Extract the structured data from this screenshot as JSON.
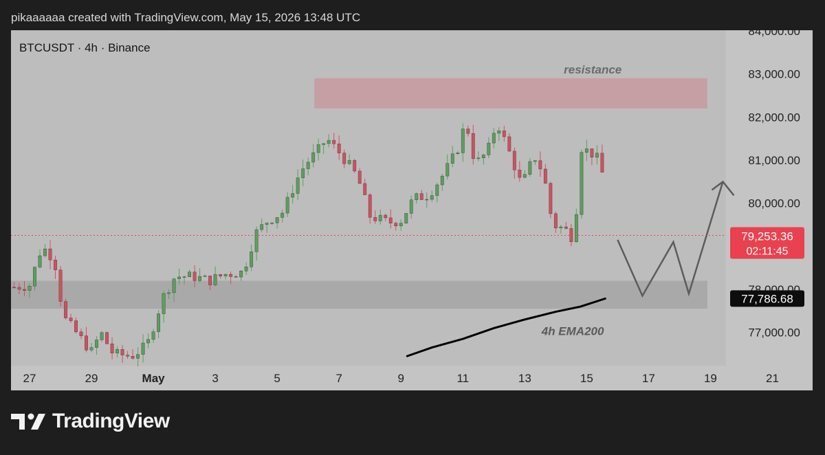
{
  "header": {
    "text": "pikaaaaaa created with TradingView.com, May 15, 2026 13:48 UTC"
  },
  "symbol": {
    "text": "BTCUSDT · 4h · Binance"
  },
  "footer": {
    "brand": "TradingView"
  },
  "chart_data": {
    "type": "candlestick",
    "symbol": "BTCUSDT",
    "timeframe": "4h",
    "exchange": "Binance",
    "ylim": [
      76500,
      84000
    ],
    "y_ticks": [
      "84,000.00",
      "83,000.00",
      "82,000.00",
      "81,000.00",
      "80,000.00",
      "78,000.00",
      "77,000.00"
    ],
    "y_tick_values": [
      84000,
      83000,
      82000,
      81000,
      80000,
      78000,
      77000
    ],
    "x_range_days": [
      26.4,
      52.3
    ],
    "x_ticks": [
      {
        "label": "27",
        "day": 27
      },
      {
        "label": "29",
        "day": 29
      },
      {
        "label": "May",
        "day": 31
      },
      {
        "label": "3",
        "day": 33
      },
      {
        "label": "5",
        "day": 35
      },
      {
        "label": "7",
        "day": 37
      },
      {
        "label": "9",
        "day": 39
      },
      {
        "label": "11",
        "day": 41
      },
      {
        "label": "13",
        "day": 43
      },
      {
        "label": "15",
        "day": 45
      },
      {
        "label": "17",
        "day": 47
      },
      {
        "label": "19",
        "day": 49
      },
      {
        "label": "21",
        "day": 51
      }
    ],
    "anchors": [
      [
        26.5,
        78050
      ],
      [
        27.0,
        78100
      ],
      [
        27.4,
        79000
      ],
      [
        27.8,
        78700
      ],
      [
        28.1,
        77350
      ],
      [
        28.5,
        77000
      ],
      [
        29.0,
        76550
      ],
      [
        29.3,
        77000
      ],
      [
        29.7,
        76500
      ],
      [
        30.3,
        76450
      ],
      [
        30.8,
        76700
      ],
      [
        31.3,
        77800
      ],
      [
        31.7,
        78300
      ],
      [
        32.3,
        78300
      ],
      [
        32.8,
        78200
      ],
      [
        33.3,
        78350
      ],
      [
        33.9,
        78400
      ],
      [
        34.3,
        79300
      ],
      [
        34.7,
        79600
      ],
      [
        35.2,
        79800
      ],
      [
        35.6,
        80500
      ],
      [
        35.9,
        80900
      ],
      [
        36.3,
        81200
      ],
      [
        36.6,
        81500
      ],
      [
        37.1,
        81100
      ],
      [
        37.6,
        80600
      ],
      [
        38.0,
        79700
      ],
      [
        38.6,
        79550
      ],
      [
        39.0,
        79600
      ],
      [
        39.4,
        80100
      ],
      [
        39.9,
        80200
      ],
      [
        40.4,
        80700
      ],
      [
        40.8,
        81200
      ],
      [
        41.1,
        81900
      ],
      [
        41.4,
        80900
      ],
      [
        41.8,
        81200
      ],
      [
        42.1,
        81900
      ],
      [
        42.6,
        81000
      ],
      [
        42.9,
        80400
      ],
      [
        43.3,
        81100
      ],
      [
        43.6,
        80700
      ],
      [
        43.9,
        79500
      ],
      [
        44.3,
        79400
      ],
      [
        44.6,
        79150
      ],
      [
        44.8,
        81300
      ],
      [
        45.3,
        81100
      ],
      [
        45.6,
        80500
      ],
      [
        45.65,
        79250
      ]
    ],
    "last_price": "79,253.36",
    "last_price_value": 79253.36,
    "countdown": "02:11:45",
    "ema": {
      "label": "4h EMA200",
      "value_label": "77,786.68",
      "value": 77786.68,
      "points": [
        [
          39.2,
          76450
        ],
        [
          40.0,
          76650
        ],
        [
          41.0,
          76850
        ],
        [
          42.0,
          77100
        ],
        [
          43.0,
          77300
        ],
        [
          44.0,
          77480
        ],
        [
          44.8,
          77600
        ],
        [
          45.6,
          77786.68
        ]
      ]
    },
    "resistance_zone": {
      "label": "resistance",
      "from": 82200,
      "to": 82900,
      "x_start": 36.2,
      "x_end": 48.9
    },
    "support_zone": {
      "from": 77550,
      "to": 78200,
      "x_start": 26.4,
      "x_end": 48.9
    },
    "projection": [
      [
        46.0,
        79150
      ],
      [
        46.8,
        77850
      ],
      [
        47.8,
        79100
      ],
      [
        48.3,
        77900
      ],
      [
        49.4,
        80500
      ]
    ],
    "colors": {
      "up": "#5aa05a",
      "down": "#d2505e",
      "resistance": "#c89aa0",
      "support": "#a6a6a6",
      "price_tag": "#e9414f",
      "ema_tag": "#0d0d0d",
      "ema_line": "#000000",
      "projection": "#5c5c5c",
      "price_line": "#e9414f"
    }
  }
}
